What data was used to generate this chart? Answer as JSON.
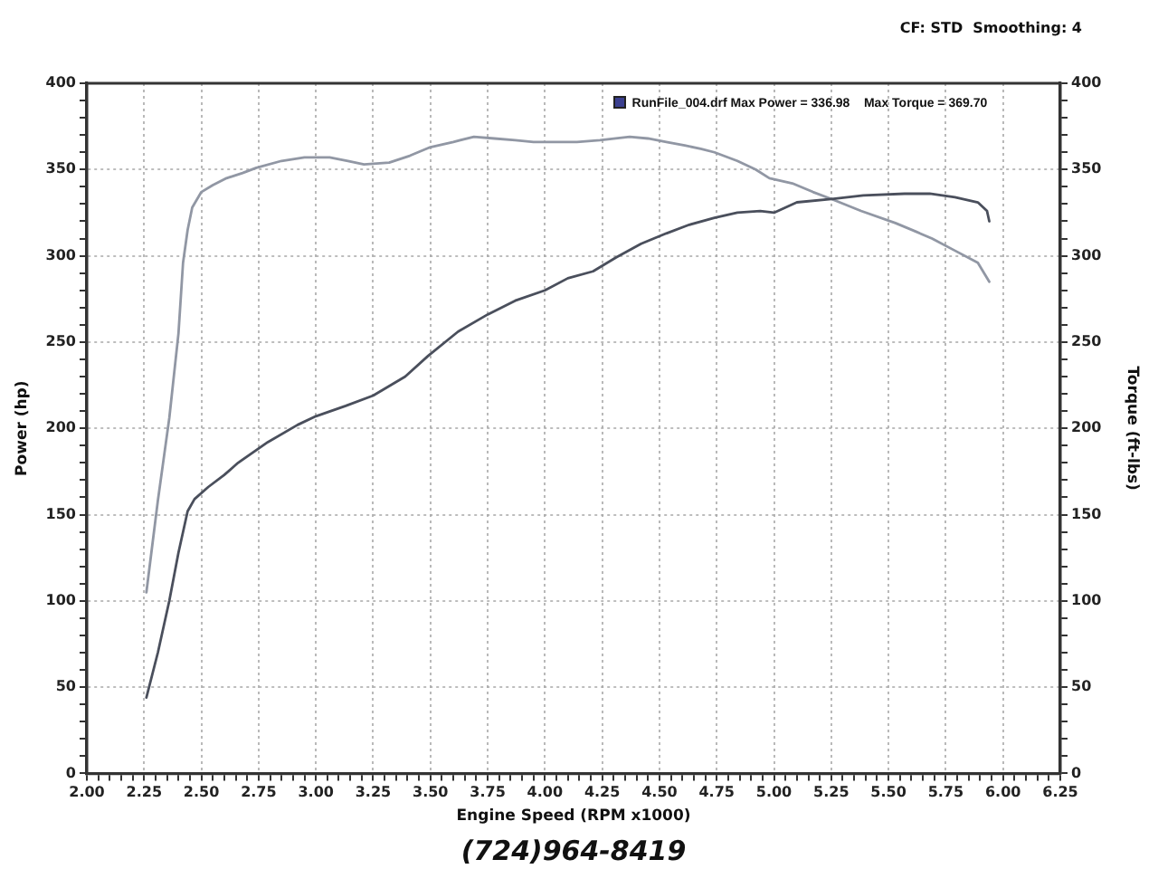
{
  "chart_data": {
    "type": "line",
    "xlabel": "Engine Speed (RPM x1000)",
    "ylabel": "Power (hp)",
    "y2label": "Torque (ft-lbs)",
    "annotations": [
      "CF: STD  Smoothing: 4",
      "RunFile_004.drf Max Power = 336.98    Max Torque = 369.70",
      "(724)964-8419"
    ],
    "series": [
      {
        "color": "#4a4f5c",
        "x": [
          2.26,
          2.31,
          2.36,
          2.4,
          2.44,
          2.47,
          2.53,
          2.6,
          2.66,
          2.79,
          2.92,
          3.0,
          3.13,
          3.25,
          3.39,
          3.49,
          3.62,
          3.75,
          3.87,
          4.0,
          4.1,
          4.21,
          4.31,
          4.42,
          4.53,
          4.63,
          4.74,
          4.84,
          4.94,
          5.0,
          5.1,
          5.26,
          5.39,
          5.57,
          5.68,
          5.79,
          5.89,
          5.93,
          5.94
        ],
        "values": [
          44,
          70,
          100,
          128,
          152,
          159,
          166,
          173,
          180,
          192,
          202,
          207,
          213,
          219,
          230,
          242,
          256,
          266,
          274,
          280,
          287,
          291,
          299,
          307,
          313,
          318,
          322,
          325,
          326,
          325,
          331,
          333,
          335,
          336,
          336,
          334,
          331,
          326,
          320
        ]
      },
      {
        "color": "#9197a4",
        "axis": "y2",
        "x": [
          2.26,
          2.31,
          2.36,
          2.4,
          2.42,
          2.44,
          2.46,
          2.5,
          2.55,
          2.61,
          2.68,
          2.74,
          2.85,
          2.95,
          3.06,
          3.14,
          3.21,
          3.32,
          3.41,
          3.5,
          3.6,
          3.69,
          3.78,
          3.87,
          3.95,
          4.03,
          4.14,
          4.24,
          4.37,
          4.45,
          4.53,
          4.61,
          4.68,
          4.74,
          4.84,
          4.92,
          4.98,
          5.08,
          5.17,
          5.25,
          5.38,
          5.53,
          5.62,
          5.69,
          5.79,
          5.89,
          5.94
        ],
        "values": [
          105,
          158,
          206,
          255,
          296,
          315,
          328,
          337,
          341,
          345,
          348,
          351,
          355,
          357,
          357,
          355,
          353,
          354,
          358,
          363,
          366,
          369,
          368,
          367,
          366,
          366,
          366,
          367,
          369,
          368,
          366,
          364,
          362,
          360,
          355,
          350,
          345,
          342,
          337,
          333,
          326,
          319,
          314,
          310,
          303,
          296,
          285
        ]
      }
    ],
    "xlim": [
      2,
      6.25
    ],
    "xticks": [
      {
        "value": 2,
        "label": "2.00"
      },
      {
        "value": 2.05,
        "label": null
      },
      {
        "value": 2.1,
        "label": null
      },
      {
        "value": 2.15,
        "label": null
      },
      {
        "value": 2.2,
        "label": null
      },
      {
        "value": 2.25,
        "label": "2.25"
      },
      {
        "value": 2.3,
        "label": null
      },
      {
        "value": 2.35,
        "label": null
      },
      {
        "value": 2.4,
        "label": null
      },
      {
        "value": 2.45,
        "label": null
      },
      {
        "value": 2.5,
        "label": "2.50"
      },
      {
        "value": 2.55,
        "label": null
      },
      {
        "value": 2.6,
        "label": null
      },
      {
        "value": 2.65,
        "label": null
      },
      {
        "value": 2.7,
        "label": null
      },
      {
        "value": 2.75,
        "label": "2.75"
      },
      {
        "value": 2.8,
        "label": null
      },
      {
        "value": 2.85,
        "label": null
      },
      {
        "value": 2.9,
        "label": null
      },
      {
        "value": 2.95,
        "label": null
      },
      {
        "value": 3,
        "label": "3.00"
      },
      {
        "value": 3.05,
        "label": null
      },
      {
        "value": 3.1,
        "label": null
      },
      {
        "value": 3.15,
        "label": null
      },
      {
        "value": 3.2,
        "label": null
      },
      {
        "value": 3.25,
        "label": "3.25"
      },
      {
        "value": 3.3,
        "label": null
      },
      {
        "value": 3.35,
        "label": null
      },
      {
        "value": 3.4,
        "label": null
      },
      {
        "value": 3.45,
        "label": null
      },
      {
        "value": 3.5,
        "label": "3.50"
      },
      {
        "value": 3.55,
        "label": null
      },
      {
        "value": 3.6,
        "label": null
      },
      {
        "value": 3.65,
        "label": null
      },
      {
        "value": 3.7,
        "label": null
      },
      {
        "value": 3.75,
        "label": "3.75"
      },
      {
        "value": 3.8,
        "label": null
      },
      {
        "value": 3.85,
        "label": null
      },
      {
        "value": 3.9,
        "label": null
      },
      {
        "value": 3.95,
        "label": null
      },
      {
        "value": 4,
        "label": "4.00"
      },
      {
        "value": 4.05,
        "label": null
      },
      {
        "value": 4.1,
        "label": null
      },
      {
        "value": 4.15,
        "label": null
      },
      {
        "value": 4.2,
        "label": null
      },
      {
        "value": 4.25,
        "label": "4.25"
      },
      {
        "value": 4.3,
        "label": null
      },
      {
        "value": 4.35,
        "label": null
      },
      {
        "value": 4.4,
        "label": null
      },
      {
        "value": 4.45,
        "label": null
      },
      {
        "value": 4.5,
        "label": "4.50"
      },
      {
        "value": 4.55,
        "label": null
      },
      {
        "value": 4.6,
        "label": null
      },
      {
        "value": 4.65,
        "label": null
      },
      {
        "value": 4.7,
        "label": null
      },
      {
        "value": 4.75,
        "label": "4.75"
      },
      {
        "value": 4.8,
        "label": null
      },
      {
        "value": 4.85,
        "label": null
      },
      {
        "value": 4.9,
        "label": null
      },
      {
        "value": 4.95,
        "label": null
      },
      {
        "value": 5,
        "label": "5.00"
      },
      {
        "value": 5.05,
        "label": null
      },
      {
        "value": 5.1,
        "label": null
      },
      {
        "value": 5.15,
        "label": null
      },
      {
        "value": 5.2,
        "label": null
      },
      {
        "value": 5.25,
        "label": "5.25"
      },
      {
        "value": 5.3,
        "label": null
      },
      {
        "value": 5.35,
        "label": null
      },
      {
        "value": 5.4,
        "label": null
      },
      {
        "value": 5.45,
        "label": null
      },
      {
        "value": 5.5,
        "label": "5.50"
      },
      {
        "value": 5.55,
        "label": null
      },
      {
        "value": 5.6,
        "label": null
      },
      {
        "value": 5.65,
        "label": null
      },
      {
        "value": 5.7,
        "label": null
      },
      {
        "value": 5.75,
        "label": "5.75"
      },
      {
        "value": 5.8,
        "label": null
      },
      {
        "value": 5.85,
        "label": null
      },
      {
        "value": 5.9,
        "label": null
      },
      {
        "value": 5.95,
        "label": null
      },
      {
        "value": 6,
        "label": "6.00"
      },
      {
        "value": 6.05,
        "label": null
      },
      {
        "value": 6.1,
        "label": null
      },
      {
        "value": 6.15,
        "label": null
      },
      {
        "value": 6.2,
        "label": null
      },
      {
        "value": 6.25,
        "label": "6.25"
      }
    ],
    "ylim": [
      0,
      400
    ],
    "yticks": [
      0,
      {
        "value": 10,
        "label": null
      },
      {
        "value": 20,
        "label": null
      },
      {
        "value": 30,
        "label": null
      },
      {
        "value": 40,
        "label": null
      },
      50,
      {
        "value": 60,
        "label": null
      },
      {
        "value": 70,
        "label": null
      },
      {
        "value": 80,
        "label": null
      },
      {
        "value": 90,
        "label": null
      },
      100,
      {
        "value": 110,
        "label": null
      },
      {
        "value": 120,
        "label": null
      },
      {
        "value": 130,
        "label": null
      },
      {
        "value": 140,
        "label": null
      },
      150,
      {
        "value": 160,
        "label": null
      },
      {
        "value": 170,
        "label": null
      },
      {
        "value": 180,
        "label": null
      },
      {
        "value": 190,
        "label": null
      },
      200,
      {
        "value": 210,
        "label": null
      },
      {
        "value": 220,
        "label": null
      },
      {
        "value": 230,
        "label": null
      },
      {
        "value": 240,
        "label": null
      },
      250,
      {
        "value": 260,
        "label": null
      },
      {
        "value": 270,
        "label": null
      },
      {
        "value": 280,
        "label": null
      },
      {
        "value": 290,
        "label": null
      },
      300,
      {
        "value": 310,
        "label": null
      },
      {
        "value": 320,
        "label": null
      },
      {
        "value": 330,
        "label": null
      },
      {
        "value": 340,
        "label": null
      },
      350,
      {
        "value": 360,
        "label": null
      },
      {
        "value": 370,
        "label": null
      },
      {
        "value": 380,
        "label": null
      },
      {
        "value": 390,
        "label": null
      },
      400
    ],
    "y2lim": [
      0,
      400
    ],
    "y2ticks": [
      0,
      {
        "value": 10,
        "label": null
      },
      {
        "value": 20,
        "label": null
      },
      {
        "value": 30,
        "label": null
      },
      {
        "value": 40,
        "label": null
      },
      50,
      {
        "value": 60,
        "label": null
      },
      {
        "value": 70,
        "label": null
      },
      {
        "value": 80,
        "label": null
      },
      {
        "value": 90,
        "label": null
      },
      100,
      {
        "value": 110,
        "label": null
      },
      {
        "value": 120,
        "label": null
      },
      {
        "value": 130,
        "label": null
      },
      {
        "value": 140,
        "label": null
      },
      150,
      {
        "value": 160,
        "label": null
      },
      {
        "value": 170,
        "label": null
      },
      {
        "value": 180,
        "label": null
      },
      {
        "value": 190,
        "label": null
      },
      200,
      {
        "value": 210,
        "label": null
      },
      {
        "value": 220,
        "label": null
      },
      {
        "value": 230,
        "label": null
      },
      {
        "value": 240,
        "label": null
      },
      250,
      {
        "value": 260,
        "label": null
      },
      {
        "value": 270,
        "label": null
      },
      {
        "value": 280,
        "label": null
      },
      {
        "value": 290,
        "label": null
      },
      300,
      {
        "value": 310,
        "label": null
      },
      {
        "value": 320,
        "label": null
      },
      {
        "value": 330,
        "label": null
      },
      {
        "value": 340,
        "label": null
      },
      350,
      {
        "value": 360,
        "label": null
      },
      {
        "value": 370,
        "label": null
      },
      {
        "value": 380,
        "label": null
      },
      {
        "value": 390,
        "label": null
      },
      400
    ],
    "grid": true
  }
}
